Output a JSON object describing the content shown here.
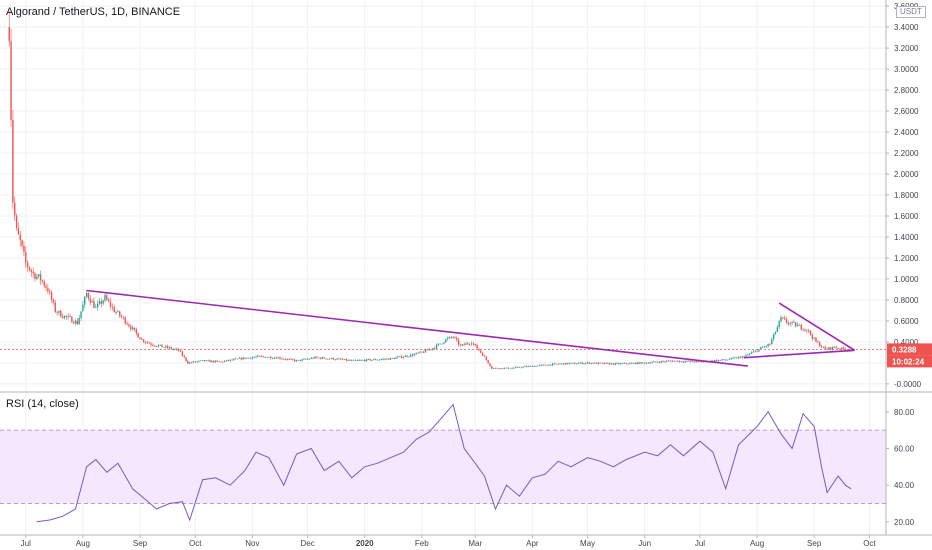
{
  "header": {
    "title": "Algorand / TetherUS, 1D, BINANCE",
    "currency": "USDT",
    "rsi_title": "RSI (14, close)"
  },
  "price_tags": {
    "last_price": "0.3288",
    "countdown": "10:02:24"
  },
  "colors": {
    "up": "#26a69a",
    "down": "#ef5350",
    "trendline": "#9c27b0",
    "rsi_line": "#7e57c2",
    "rsi_band": "#f3e8fd",
    "grid": "#eef0f3",
    "tag_last": "#ef5350",
    "tag_countdown": "#ef5350"
  },
  "chart_data": [
    {
      "type": "candlestick",
      "title": "Algorand / TetherUS, 1D, BINANCE",
      "y_ticks": [
        "3.6000",
        "3.4000",
        "3.2000",
        "3.0000",
        "2.8000",
        "2.6000",
        "2.4000",
        "2.2000",
        "2.0000",
        "1.8000",
        "1.6000",
        "1.4000",
        "1.2000",
        "1.0000",
        "0.8000",
        "0.6000",
        "0.4000",
        "0.2000",
        "-0.0000"
      ],
      "ylim": [
        -0.02,
        3.62
      ],
      "x_ticks": [
        "Jul",
        "Aug",
        "Sep",
        "Oct",
        "Nov",
        "Dec",
        "2020",
        "Feb",
        "Mar",
        "Apr",
        "May",
        "Jun",
        "Jul",
        "Aug",
        "Sep",
        "Oct"
      ],
      "close_series": [
        [
          "2019-06-22",
          3.4
        ],
        [
          "2019-06-24",
          1.75
        ],
        [
          "2019-06-26",
          1.45
        ],
        [
          "2019-06-28",
          1.35
        ],
        [
          "2019-07-01",
          1.15
        ],
        [
          "2019-07-05",
          1.05
        ],
        [
          "2019-07-09",
          1.0
        ],
        [
          "2019-07-13",
          0.9
        ],
        [
          "2019-07-17",
          0.7
        ],
        [
          "2019-07-21",
          0.65
        ],
        [
          "2019-07-25",
          0.62
        ],
        [
          "2019-07-29",
          0.58
        ],
        [
          "2019-08-03",
          0.86
        ],
        [
          "2019-08-08",
          0.72
        ],
        [
          "2019-08-13",
          0.82
        ],
        [
          "2019-08-18",
          0.7
        ],
        [
          "2019-08-23",
          0.62
        ],
        [
          "2019-08-28",
          0.52
        ],
        [
          "2019-09-02",
          0.42
        ],
        [
          "2019-09-07",
          0.38
        ],
        [
          "2019-09-12",
          0.36
        ],
        [
          "2019-09-17",
          0.34
        ],
        [
          "2019-09-22",
          0.32
        ],
        [
          "2019-09-27",
          0.2
        ],
        [
          "2019-10-05",
          0.22
        ],
        [
          "2019-10-15",
          0.21
        ],
        [
          "2019-10-25",
          0.24
        ],
        [
          "2019-11-05",
          0.26
        ],
        [
          "2019-11-15",
          0.25
        ],
        [
          "2019-11-25",
          0.22
        ],
        [
          "2019-12-05",
          0.25
        ],
        [
          "2019-12-15",
          0.24
        ],
        [
          "2019-12-25",
          0.22
        ],
        [
          "2020-01-05",
          0.23
        ],
        [
          "2020-01-15",
          0.24
        ],
        [
          "2020-01-25",
          0.27
        ],
        [
          "2020-02-01",
          0.3
        ],
        [
          "2020-02-08",
          0.35
        ],
        [
          "2020-02-14",
          0.42
        ],
        [
          "2020-02-18",
          0.45
        ],
        [
          "2020-02-22",
          0.36
        ],
        [
          "2020-02-28",
          0.4
        ],
        [
          "2020-03-05",
          0.28
        ],
        [
          "2020-03-10",
          0.15
        ],
        [
          "2020-03-20",
          0.15
        ],
        [
          "2020-04-01",
          0.17
        ],
        [
          "2020-04-15",
          0.19
        ],
        [
          "2020-05-01",
          0.2
        ],
        [
          "2020-05-15",
          0.19
        ],
        [
          "2020-06-01",
          0.2
        ],
        [
          "2020-06-15",
          0.22
        ],
        [
          "2020-07-01",
          0.21
        ],
        [
          "2020-07-15",
          0.23
        ],
        [
          "2020-07-25",
          0.26
        ],
        [
          "2020-08-01",
          0.32
        ],
        [
          "2020-08-08",
          0.38
        ],
        [
          "2020-08-14",
          0.62
        ],
        [
          "2020-08-18",
          0.58
        ],
        [
          "2020-08-22",
          0.56
        ],
        [
          "2020-08-28",
          0.52
        ],
        [
          "2020-09-02",
          0.4
        ],
        [
          "2020-09-07",
          0.33
        ],
        [
          "2020-09-12",
          0.35
        ],
        [
          "2020-09-17",
          0.33
        ],
        [
          "2020-09-21",
          0.3288
        ]
      ],
      "trendlines": [
        {
          "from": [
            "2019-08-03",
            0.89
          ],
          "to": [
            "2020-07-27",
            0.17
          ]
        },
        {
          "from": [
            "2020-08-13",
            0.77
          ],
          "to": [
            "2020-09-23",
            0.32
          ]
        },
        {
          "from": [
            "2020-07-25",
            0.25
          ],
          "to": [
            "2020-09-23",
            0.32
          ]
        }
      ]
    },
    {
      "type": "line",
      "title": "RSI (14, close)",
      "y_ticks": [
        "80.00",
        "60.00",
        "40.00",
        "20.00"
      ],
      "ylim": [
        15,
        87
      ],
      "band": [
        30,
        70
      ],
      "series": [
        [
          "2019-07-07",
          20
        ],
        [
          "2019-07-14",
          21
        ],
        [
          "2019-07-21",
          23
        ],
        [
          "2019-07-28",
          27
        ],
        [
          "2019-08-03",
          50
        ],
        [
          "2019-08-08",
          54
        ],
        [
          "2019-08-14",
          47
        ],
        [
          "2019-08-20",
          52
        ],
        [
          "2019-08-28",
          38
        ],
        [
          "2019-09-03",
          33
        ],
        [
          "2019-09-10",
          27
        ],
        [
          "2019-09-17",
          30
        ],
        [
          "2019-09-24",
          31
        ],
        [
          "2019-09-28",
          21
        ],
        [
          "2019-10-05",
          43
        ],
        [
          "2019-10-12",
          44
        ],
        [
          "2019-10-20",
          40
        ],
        [
          "2019-10-28",
          48
        ],
        [
          "2019-11-03",
          58
        ],
        [
          "2019-11-10",
          55
        ],
        [
          "2019-11-18",
          40
        ],
        [
          "2019-11-25",
          57
        ],
        [
          "2019-12-03",
          60
        ],
        [
          "2019-12-10",
          48
        ],
        [
          "2019-12-18",
          53
        ],
        [
          "2019-12-25",
          44
        ],
        [
          "2020-01-01",
          50
        ],
        [
          "2020-01-08",
          52
        ],
        [
          "2020-01-15",
          55
        ],
        [
          "2020-01-22",
          58
        ],
        [
          "2020-01-29",
          65
        ],
        [
          "2020-02-05",
          69
        ],
        [
          "2020-02-12",
          77
        ],
        [
          "2020-02-18",
          84
        ],
        [
          "2020-02-24",
          60
        ],
        [
          "2020-03-01",
          52
        ],
        [
          "2020-03-06",
          45
        ],
        [
          "2020-03-12",
          27
        ],
        [
          "2020-03-18",
          40
        ],
        [
          "2020-03-25",
          34
        ],
        [
          "2020-04-01",
          44
        ],
        [
          "2020-04-08",
          46
        ],
        [
          "2020-04-15",
          53
        ],
        [
          "2020-04-22",
          50
        ],
        [
          "2020-05-01",
          55
        ],
        [
          "2020-05-08",
          53
        ],
        [
          "2020-05-15",
          50
        ],
        [
          "2020-05-22",
          54
        ],
        [
          "2020-06-01",
          58
        ],
        [
          "2020-06-08",
          56
        ],
        [
          "2020-06-15",
          62
        ],
        [
          "2020-06-22",
          56
        ],
        [
          "2020-07-01",
          64
        ],
        [
          "2020-07-08",
          58
        ],
        [
          "2020-07-15",
          38
        ],
        [
          "2020-07-22",
          62
        ],
        [
          "2020-08-01",
          72
        ],
        [
          "2020-08-07",
          80
        ],
        [
          "2020-08-14",
          68
        ],
        [
          "2020-08-20",
          60
        ],
        [
          "2020-08-26",
          79
        ],
        [
          "2020-09-01",
          72
        ],
        [
          "2020-09-05",
          50
        ],
        [
          "2020-09-08",
          36
        ],
        [
          "2020-09-14",
          45
        ],
        [
          "2020-09-18",
          40
        ],
        [
          "2020-09-21",
          38
        ]
      ]
    }
  ]
}
